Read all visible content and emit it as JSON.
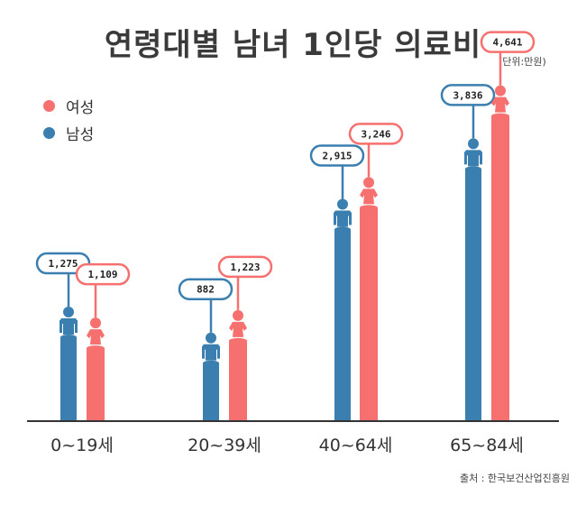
{
  "header": {
    "title": "연령대별 남녀 1인당 의료비",
    "unit": "(단위:만원)"
  },
  "legend": [
    {
      "label": "여성",
      "color": "#F6706F"
    },
    {
      "label": "남성",
      "color": "#3A7FAF"
    }
  ],
  "colors": {
    "female": "#F6706F",
    "male": "#3A7FAF",
    "axis": "#333333"
  },
  "footer": {
    "source": "출처 : 한국보건산업진흥원"
  },
  "chart_data": {
    "type": "bar",
    "categories": [
      "0~19세",
      "20~39세",
      "40~64세",
      "65~84세"
    ],
    "series": [
      {
        "name": "남성",
        "values": [
          1275,
          882,
          2915,
          3836
        ],
        "labels": [
          "1,275",
          "882",
          "2,915",
          "3,836"
        ]
      },
      {
        "name": "여성",
        "values": [
          1109,
          1223,
          3246,
          4641
        ],
        "labels": [
          "1,109",
          "1,223",
          "3,246",
          "4,641"
        ]
      }
    ],
    "xlabel": "",
    "ylabel": ""
  }
}
